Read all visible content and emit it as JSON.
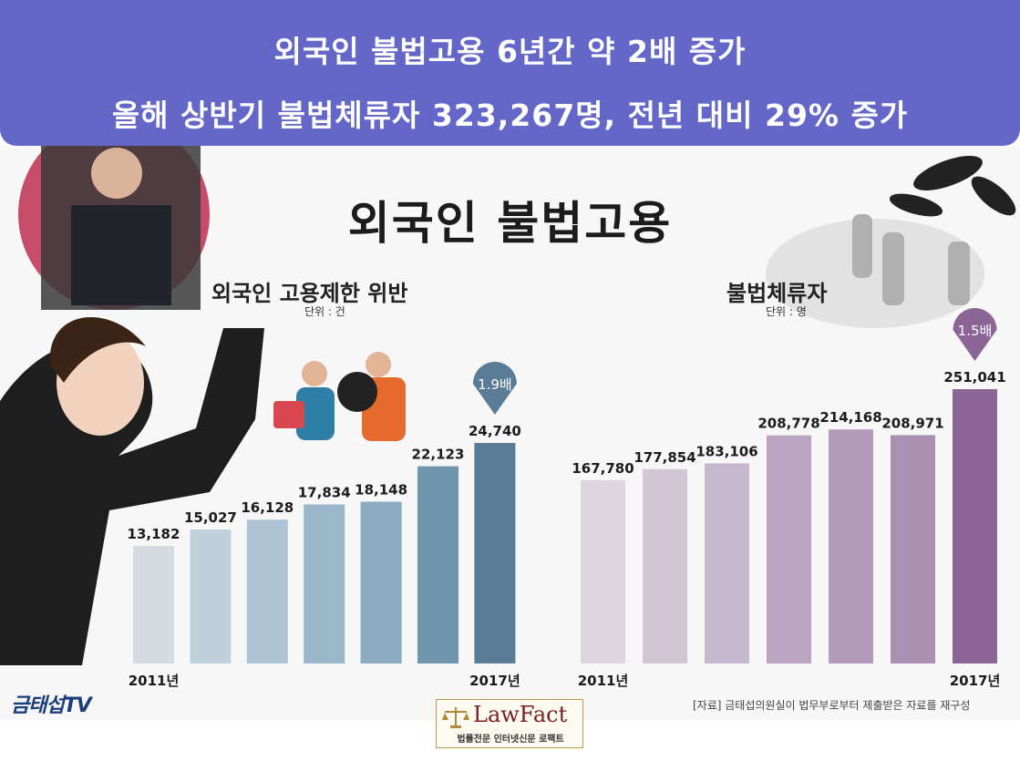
{
  "banner": {
    "line1": "외국인 불법고용 6년간 약 2배 증가",
    "line2": "올해 상반기 불법체류자 323,267명, 전년 대비 29% 증가"
  },
  "main_title": "외국인 불법고용",
  "source_note": "[자료] 금태섭의원실이 법무부로부터 제출받은 자료를 재구성",
  "tv_logo": "금태섭TV",
  "lawfact": {
    "name": "LawFact",
    "tagline": "법률전문 인터넷신문 로팩트"
  },
  "colors": {
    "banner": "#6466c8",
    "left_last": "#5b7c96",
    "right_last": "#8a6596"
  },
  "chart_data": [
    {
      "type": "bar",
      "title": "외국인 고용제한 위반",
      "unit": "단위 : 건",
      "x": [
        "2011년",
        "",
        "",
        "",
        "",
        "",
        "2017년"
      ],
      "values": [
        13182,
        15027,
        16128,
        17834,
        18148,
        22123,
        24740
      ],
      "labels": [
        "13,182",
        "15,027",
        "16,128",
        "17,834",
        "18,148",
        "22,123",
        "24,740"
      ],
      "colors": [
        "#d4dce2",
        "#c1d1dc",
        "#acc4d3",
        "#9bb7ca",
        "#8aabc0",
        "#7096ae",
        "#5b7c96"
      ],
      "annotation": "1.9배",
      "ylim": [
        0,
        28000
      ]
    },
    {
      "type": "bar",
      "title": "불법체류자",
      "unit": "단위 : 명",
      "x": [
        "2011년",
        "",
        "",
        "",
        "",
        "",
        "2017년"
      ],
      "values": [
        167780,
        177854,
        183106,
        208778,
        214168,
        208971,
        251041
      ],
      "labels": [
        "167,780",
        "177,854",
        "183,106",
        "208,778",
        "214,168",
        "208,971",
        "251,041"
      ],
      "colors": [
        "#ddd5df",
        "#d2c5d6",
        "#c8b8ce",
        "#bba6c2",
        "#b39bbb",
        "#a98fb1",
        "#8a6596"
      ],
      "annotation": "1.5배",
      "ylim": [
        0,
        285000
      ]
    }
  ]
}
